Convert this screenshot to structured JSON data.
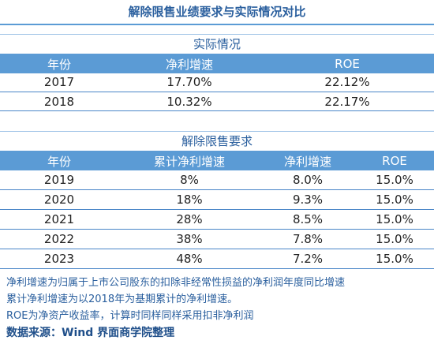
{
  "title": "解除限售业绩要求与实际情况对比",
  "actual": {
    "caption": "实际情况",
    "headers": [
      "年份",
      "净利增速",
      "ROE"
    ],
    "rows": [
      [
        "2017",
        "17.70%",
        "22.12%"
      ],
      [
        "2018",
        "10.32%",
        "22.17%"
      ]
    ]
  },
  "requirement": {
    "caption": "解除限售要求",
    "headers": [
      "年份",
      "累计净利增速",
      "净利增速",
      "ROE"
    ],
    "rows": [
      [
        "2019",
        "8%",
        "8.0%",
        "15.0%"
      ],
      [
        "2020",
        "18%",
        "9.3%",
        "15.0%"
      ],
      [
        "2021",
        "28%",
        "8.5%",
        "15.0%"
      ],
      [
        "2022",
        "38%",
        "7.8%",
        "15.0%"
      ],
      [
        "2023",
        "48%",
        "7.2%",
        "15.0%"
      ]
    ]
  },
  "notes": [
    "净利增速为归属于上市公司股东的扣除非经常性损益的净利润年度同比增速",
    "累计净利增速为以2018年为基期累计的净利增速。",
    "ROE为净资产收益率，计算时同样同样采用扣非净利润"
  ],
  "source": "数据来源：Wind 界面商学院整理",
  "colors": {
    "accent": "#5b9bd5",
    "title_text": "#2a5f9e",
    "header_text": "#ffffff"
  }
}
